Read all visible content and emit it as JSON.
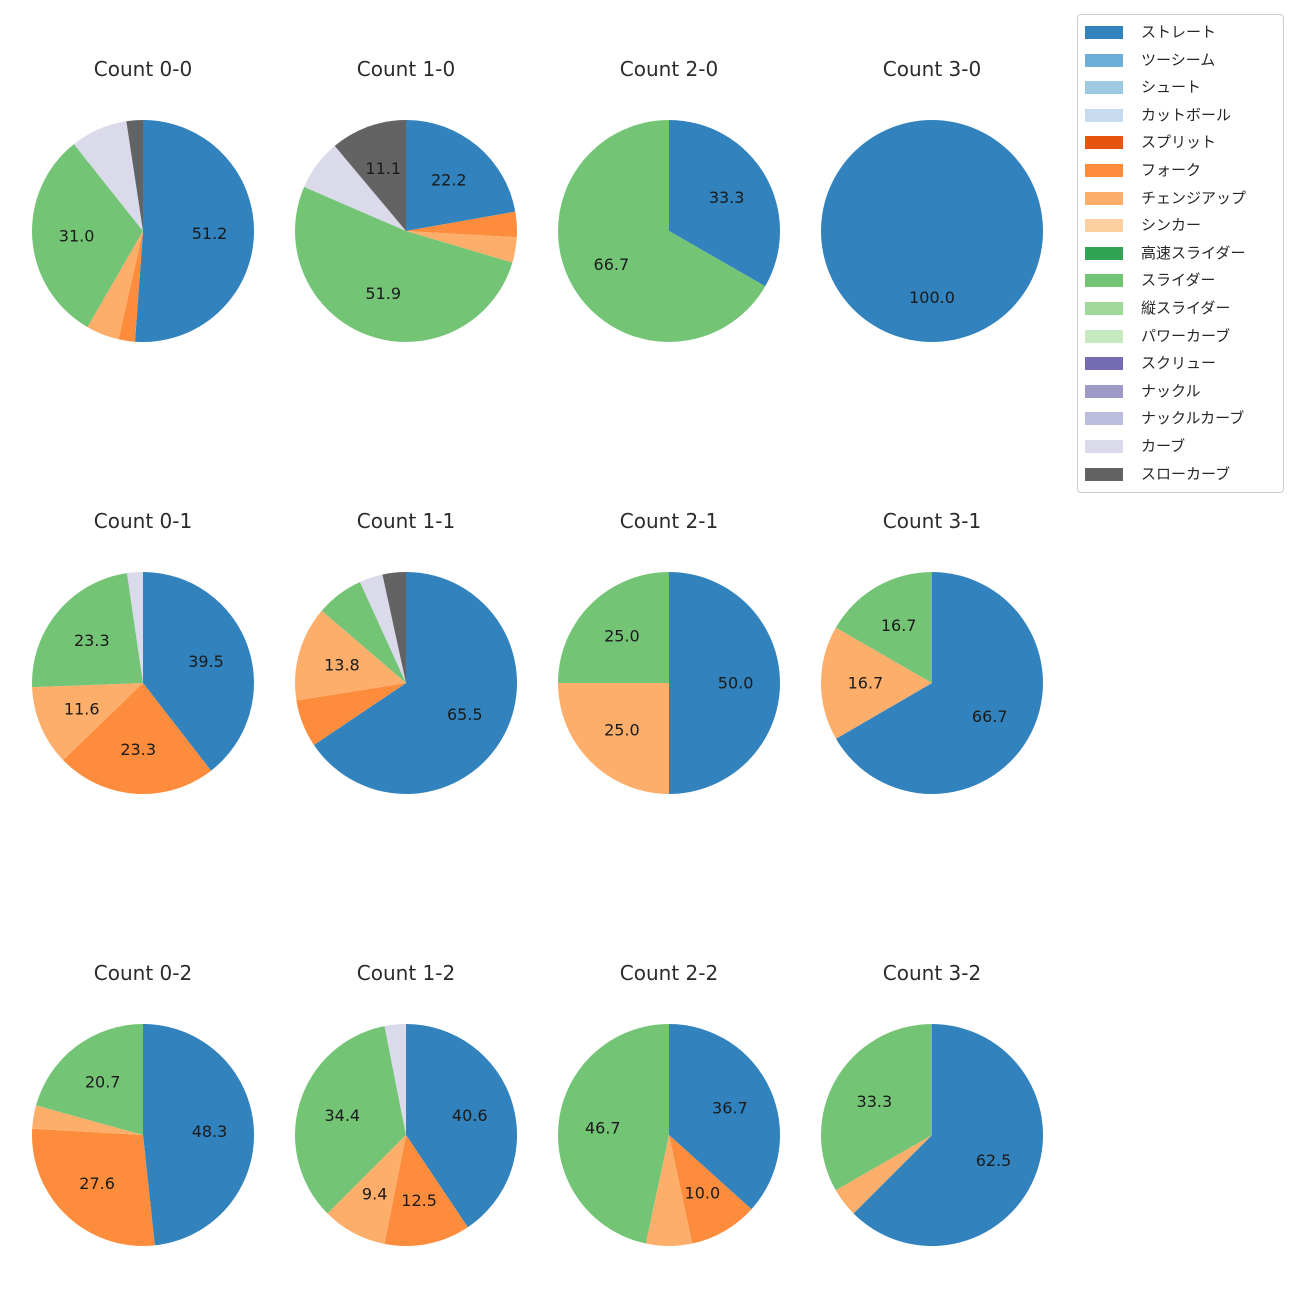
{
  "chart_data": {
    "type": "pie",
    "description": "Pitch type usage percentage by ball-strike count",
    "grid": {
      "rows": 3,
      "cols": 4
    },
    "legend": {
      "position": "upper-right",
      "items": [
        {
          "label": "ストレート",
          "color": "#3182bd"
        },
        {
          "label": "ツーシーム",
          "color": "#6baed6"
        },
        {
          "label": "シュート",
          "color": "#9ecae1"
        },
        {
          "label": "カットボール",
          "color": "#c6dbef"
        },
        {
          "label": "スプリット",
          "color": "#e6550d"
        },
        {
          "label": "フォーク",
          "color": "#fd8d3c"
        },
        {
          "label": "チェンジアップ",
          "color": "#fdae6b"
        },
        {
          "label": "シンカー",
          "color": "#fdd0a2"
        },
        {
          "label": "高速スライダー",
          "color": "#31a354"
        },
        {
          "label": "スライダー",
          "color": "#74c476"
        },
        {
          "label": "縦スライダー",
          "color": "#a1d99b"
        },
        {
          "label": "パワーカーブ",
          "color": "#c7e9c0"
        },
        {
          "label": "スクリュー",
          "color": "#756bb1"
        },
        {
          "label": "ナックル",
          "color": "#9e9ac8"
        },
        {
          "label": "ナックルカーブ",
          "color": "#bcbddc"
        },
        {
          "label": "カーブ",
          "color": "#dadaeb"
        },
        {
          "label": "スローカーブ",
          "color": "#636363"
        }
      ]
    },
    "charts": [
      {
        "title": "Count 0-0",
        "slices": [
          {
            "category": "ストレート",
            "value": 51.2,
            "label": "51.2"
          },
          {
            "category": "フォーク",
            "value": 2.4,
            "label": ""
          },
          {
            "category": "チェンジアップ",
            "value": 4.8,
            "label": ""
          },
          {
            "category": "スライダー",
            "value": 31.0,
            "label": "31.0"
          },
          {
            "category": "カーブ",
            "value": 8.3,
            "label": ""
          },
          {
            "category": "スローカーブ",
            "value": 2.4,
            "label": ""
          }
        ]
      },
      {
        "title": "Count 1-0",
        "slices": [
          {
            "category": "ストレート",
            "value": 22.2,
            "label": "22.2"
          },
          {
            "category": "フォーク",
            "value": 3.7,
            "label": ""
          },
          {
            "category": "チェンジアップ",
            "value": 3.7,
            "label": ""
          },
          {
            "category": "スライダー",
            "value": 51.9,
            "label": "51.9"
          },
          {
            "category": "カーブ",
            "value": 7.4,
            "label": ""
          },
          {
            "category": "スローカーブ",
            "value": 11.1,
            "label": "11.1"
          }
        ]
      },
      {
        "title": "Count 2-0",
        "slices": [
          {
            "category": "ストレート",
            "value": 33.3,
            "label": "33.3"
          },
          {
            "category": "スライダー",
            "value": 66.7,
            "label": "66.7"
          }
        ]
      },
      {
        "title": "Count 3-0",
        "slices": [
          {
            "category": "ストレート",
            "value": 100.0,
            "label": "100.0"
          }
        ]
      },
      {
        "title": "Count 0-1",
        "slices": [
          {
            "category": "ストレート",
            "value": 39.5,
            "label": "39.5"
          },
          {
            "category": "フォーク",
            "value": 23.3,
            "label": "23.3"
          },
          {
            "category": "チェンジアップ",
            "value": 11.6,
            "label": "11.6"
          },
          {
            "category": "スライダー",
            "value": 23.3,
            "label": "23.3"
          },
          {
            "category": "カーブ",
            "value": 2.3,
            "label": ""
          }
        ]
      },
      {
        "title": "Count 1-1",
        "slices": [
          {
            "category": "ストレート",
            "value": 65.5,
            "label": "65.5"
          },
          {
            "category": "フォーク",
            "value": 6.9,
            "label": ""
          },
          {
            "category": "チェンジアップ",
            "value": 13.8,
            "label": "13.8"
          },
          {
            "category": "スライダー",
            "value": 6.9,
            "label": ""
          },
          {
            "category": "カーブ",
            "value": 3.4,
            "label": ""
          },
          {
            "category": "スローカーブ",
            "value": 3.4,
            "label": ""
          }
        ]
      },
      {
        "title": "Count 2-1",
        "slices": [
          {
            "category": "ストレート",
            "value": 50.0,
            "label": "50.0"
          },
          {
            "category": "チェンジアップ",
            "value": 25.0,
            "label": "25.0"
          },
          {
            "category": "スライダー",
            "value": 25.0,
            "label": "25.0"
          }
        ]
      },
      {
        "title": "Count 3-1",
        "slices": [
          {
            "category": "ストレート",
            "value": 66.7,
            "label": "66.7"
          },
          {
            "category": "チェンジアップ",
            "value": 16.7,
            "label": "16.7"
          },
          {
            "category": "スライダー",
            "value": 16.7,
            "label": "16.7"
          }
        ]
      },
      {
        "title": "Count 0-2",
        "slices": [
          {
            "category": "ストレート",
            "value": 48.3,
            "label": "48.3"
          },
          {
            "category": "フォーク",
            "value": 27.6,
            "label": "27.6"
          },
          {
            "category": "チェンジアップ",
            "value": 3.4,
            "label": ""
          },
          {
            "category": "スライダー",
            "value": 20.7,
            "label": "20.7"
          }
        ]
      },
      {
        "title": "Count 1-2",
        "slices": [
          {
            "category": "ストレート",
            "value": 40.6,
            "label": "40.6"
          },
          {
            "category": "フォーク",
            "value": 12.5,
            "label": "12.5"
          },
          {
            "category": "チェンジアップ",
            "value": 9.4,
            "label": "9.4"
          },
          {
            "category": "スライダー",
            "value": 34.4,
            "label": "34.4"
          },
          {
            "category": "カーブ",
            "value": 3.1,
            "label": ""
          }
        ]
      },
      {
        "title": "Count 2-2",
        "slices": [
          {
            "category": "ストレート",
            "value": 36.7,
            "label": "36.7"
          },
          {
            "category": "フォーク",
            "value": 10.0,
            "label": "10.0"
          },
          {
            "category": "チェンジアップ",
            "value": 6.7,
            "label": ""
          },
          {
            "category": "スライダー",
            "value": 46.7,
            "label": "46.7"
          }
        ]
      },
      {
        "title": "Count 3-2",
        "slices": [
          {
            "category": "ストレート",
            "value": 62.5,
            "label": "62.5"
          },
          {
            "category": "チェンジアップ",
            "value": 4.2,
            "label": ""
          },
          {
            "category": "スライダー",
            "value": 33.3,
            "label": "33.3"
          }
        ]
      }
    ]
  }
}
